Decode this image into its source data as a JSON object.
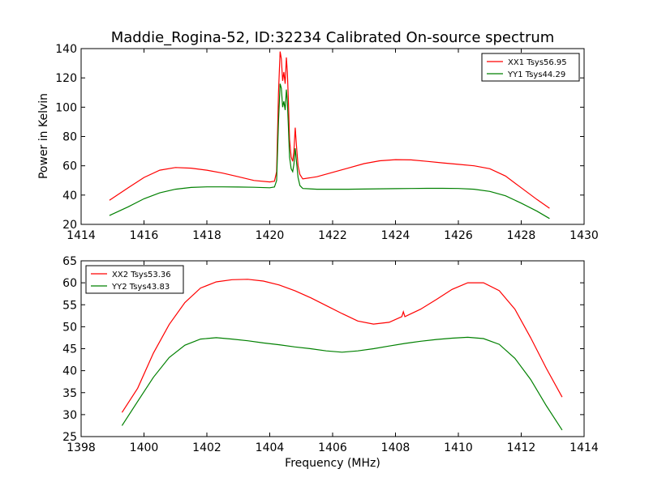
{
  "chart_data": [
    {
      "type": "line",
      "title": "Maddie_Rogina-52, ID:32234 Calibrated On-source spectrum",
      "xlabel": "",
      "ylabel": "Power in Kelvin",
      "xlim": [
        1414,
        1430
      ],
      "ylim": [
        20,
        140
      ],
      "xticks": [
        1414,
        1416,
        1418,
        1420,
        1422,
        1424,
        1426,
        1428,
        1430
      ],
      "yticks": [
        20,
        40,
        60,
        80,
        100,
        120,
        140
      ],
      "legend_position": "top-right",
      "grid": false,
      "series": [
        {
          "name": "XX1 Tsys56.95",
          "color": "#ff0000",
          "points": [
            [
              1414.9,
              36.5
            ],
            [
              1415.5,
              45
            ],
            [
              1416.0,
              52
            ],
            [
              1416.5,
              57
            ],
            [
              1417.0,
              58.8
            ],
            [
              1417.5,
              58.4
            ],
            [
              1418.0,
              57
            ],
            [
              1418.5,
              55
            ],
            [
              1419.0,
              52.5
            ],
            [
              1419.5,
              50
            ],
            [
              1420.0,
              49
            ],
            [
              1420.15,
              49.5
            ],
            [
              1420.22,
              56
            ],
            [
              1420.28,
              110
            ],
            [
              1420.33,
              138
            ],
            [
              1420.37,
              133
            ],
            [
              1420.41,
              118
            ],
            [
              1420.45,
              124
            ],
            [
              1420.49,
              116
            ],
            [
              1420.53,
              134
            ],
            [
              1420.56,
              124
            ],
            [
              1420.59,
              106
            ],
            [
              1420.63,
              78
            ],
            [
              1420.68,
              66
            ],
            [
              1420.73,
              63
            ],
            [
              1420.77,
              70
            ],
            [
              1420.81,
              86
            ],
            [
              1420.85,
              74
            ],
            [
              1420.9,
              60
            ],
            [
              1420.96,
              54
            ],
            [
              1421.05,
              51
            ],
            [
              1421.5,
              52.5
            ],
            [
              1422.0,
              55.5
            ],
            [
              1422.5,
              58.5
            ],
            [
              1423.0,
              61.5
            ],
            [
              1423.5,
              63.4
            ],
            [
              1424.0,
              64.2
            ],
            [
              1424.5,
              64
            ],
            [
              1425.0,
              63
            ],
            [
              1425.5,
              62
            ],
            [
              1426.0,
              61
            ],
            [
              1426.5,
              60
            ],
            [
              1427.0,
              58
            ],
            [
              1427.5,
              53
            ],
            [
              1428.0,
              45
            ],
            [
              1428.5,
              37
            ],
            [
              1428.9,
              31
            ]
          ]
        },
        {
          "name": "YY1 Tsys44.29",
          "color": "#008000",
          "points": [
            [
              1414.9,
              26
            ],
            [
              1415.5,
              32
            ],
            [
              1416.0,
              37.5
            ],
            [
              1416.5,
              41.5
            ],
            [
              1417.0,
              44
            ],
            [
              1417.5,
              45.2
            ],
            [
              1418.0,
              45.6
            ],
            [
              1418.5,
              45.6
            ],
            [
              1419.0,
              45.5
            ],
            [
              1419.5,
              45.3
            ],
            [
              1420.0,
              45
            ],
            [
              1420.15,
              45.5
            ],
            [
              1420.22,
              50
            ],
            [
              1420.28,
              90
            ],
            [
              1420.33,
              116
            ],
            [
              1420.37,
              113
            ],
            [
              1420.41,
              100
            ],
            [
              1420.45,
              104
            ],
            [
              1420.49,
              98
            ],
            [
              1420.53,
              112
            ],
            [
              1420.56,
              104
            ],
            [
              1420.59,
              88
            ],
            [
              1420.63,
              66
            ],
            [
              1420.68,
              58
            ],
            [
              1420.73,
              56
            ],
            [
              1420.77,
              61
            ],
            [
              1420.81,
              72
            ],
            [
              1420.85,
              63
            ],
            [
              1420.9,
              52
            ],
            [
              1420.96,
              46.5
            ],
            [
              1421.05,
              44.5
            ],
            [
              1421.5,
              44
            ],
            [
              1422.0,
              44
            ],
            [
              1422.5,
              44
            ],
            [
              1423.0,
              44.1
            ],
            [
              1423.5,
              44.3
            ],
            [
              1424.0,
              44.4
            ],
            [
              1424.5,
              44.5
            ],
            [
              1425.0,
              44.6
            ],
            [
              1425.5,
              44.6
            ],
            [
              1426.0,
              44.5
            ],
            [
              1426.5,
              44
            ],
            [
              1427.0,
              42.5
            ],
            [
              1427.5,
              39.5
            ],
            [
              1428.0,
              34.5
            ],
            [
              1428.5,
              29
            ],
            [
              1428.9,
              24
            ]
          ]
        }
      ]
    },
    {
      "type": "line",
      "title": "",
      "xlabel": "Frequency (MHz)",
      "ylabel": "",
      "xlim": [
        1398,
        1414
      ],
      "ylim": [
        25,
        65
      ],
      "xticks": [
        1398,
        1400,
        1402,
        1404,
        1406,
        1408,
        1410,
        1412,
        1414
      ],
      "yticks": [
        25,
        30,
        35,
        40,
        45,
        50,
        55,
        60,
        65
      ],
      "legend_position": "top-left",
      "grid": false,
      "series": [
        {
          "name": "XX2 Tsys53.36",
          "color": "#ff0000",
          "points": [
            [
              1399.3,
              30.5
            ],
            [
              1399.8,
              36
            ],
            [
              1400.3,
              44
            ],
            [
              1400.8,
              50.5
            ],
            [
              1401.3,
              55.5
            ],
            [
              1401.8,
              58.8
            ],
            [
              1402.3,
              60.2
            ],
            [
              1402.8,
              60.7
            ],
            [
              1403.3,
              60.8
            ],
            [
              1403.8,
              60.4
            ],
            [
              1404.3,
              59.5
            ],
            [
              1404.8,
              58.2
            ],
            [
              1405.3,
              56.6
            ],
            [
              1405.8,
              54.8
            ],
            [
              1406.3,
              53
            ],
            [
              1406.8,
              51.3
            ],
            [
              1407.3,
              50.6
            ],
            [
              1407.8,
              51
            ],
            [
              1408.2,
              52.3
            ],
            [
              1408.25,
              53.4
            ],
            [
              1408.3,
              52.3
            ],
            [
              1408.8,
              54
            ],
            [
              1409.3,
              56.2
            ],
            [
              1409.8,
              58.5
            ],
            [
              1410.3,
              60
            ],
            [
              1410.8,
              60
            ],
            [
              1411.3,
              58.2
            ],
            [
              1411.8,
              54
            ],
            [
              1412.3,
              47.5
            ],
            [
              1412.8,
              40.5
            ],
            [
              1413.3,
              34
            ]
          ]
        },
        {
          "name": "YY2 Tsys43.83",
          "color": "#008000",
          "points": [
            [
              1399.3,
              27.5
            ],
            [
              1399.8,
              33
            ],
            [
              1400.3,
              38.5
            ],
            [
              1400.8,
              43
            ],
            [
              1401.3,
              45.8
            ],
            [
              1401.8,
              47.2
            ],
            [
              1402.3,
              47.5
            ],
            [
              1402.8,
              47.2
            ],
            [
              1403.3,
              46.8
            ],
            [
              1403.8,
              46.3
            ],
            [
              1404.3,
              45.9
            ],
            [
              1404.8,
              45.4
            ],
            [
              1405.3,
              45
            ],
            [
              1405.8,
              44.5
            ],
            [
              1406.3,
              44.2
            ],
            [
              1406.8,
              44.5
            ],
            [
              1407.3,
              45
            ],
            [
              1407.8,
              45.6
            ],
            [
              1408.3,
              46.2
            ],
            [
              1408.8,
              46.7
            ],
            [
              1409.3,
              47.1
            ],
            [
              1409.8,
              47.4
            ],
            [
              1410.3,
              47.6
            ],
            [
              1410.8,
              47.3
            ],
            [
              1411.3,
              46
            ],
            [
              1411.8,
              42.8
            ],
            [
              1412.3,
              38
            ],
            [
              1412.8,
              32
            ],
            [
              1413.3,
              26.5
            ]
          ]
        }
      ]
    }
  ]
}
